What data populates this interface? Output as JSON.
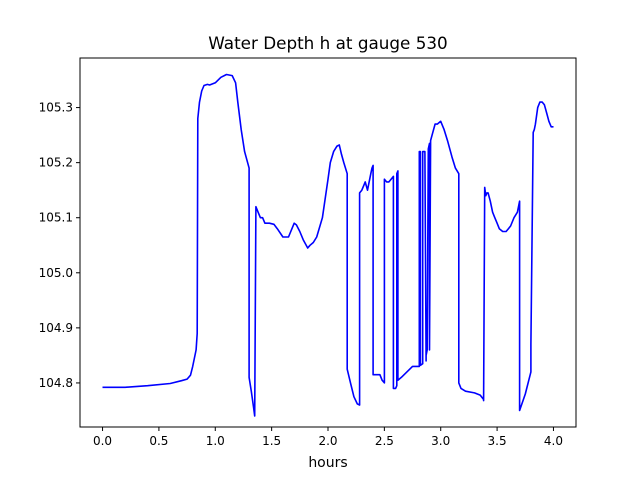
{
  "chart_data": {
    "type": "line",
    "title": "Water Depth h at gauge 530",
    "xlabel": "hours",
    "ylabel": "",
    "xlim": [
      -0.2,
      4.2
    ],
    "ylim": [
      104.72,
      105.39
    ],
    "grid": false,
    "x_ticks": [
      0.0,
      0.5,
      1.0,
      1.5,
      2.0,
      2.5,
      3.0,
      3.5,
      4.0
    ],
    "x_tick_labels": [
      "0.0",
      "0.5",
      "1.0",
      "1.5",
      "2.0",
      "2.5",
      "3.0",
      "3.5",
      "4.0"
    ],
    "y_ticks": [
      104.8,
      104.9,
      105.0,
      105.1,
      105.2,
      105.3
    ],
    "y_tick_labels": [
      "104.8",
      "104.9",
      "105.0",
      "105.1",
      "105.2",
      "105.3"
    ],
    "series": [
      {
        "color": "#0000ff",
        "x": [
          0.0,
          0.2,
          0.4,
          0.6,
          0.7,
          0.75,
          0.78,
          0.8,
          0.83,
          0.84,
          0.845,
          0.86,
          0.88,
          0.9,
          0.93,
          0.95,
          1.0,
          1.05,
          1.1,
          1.15,
          1.18,
          1.2,
          1.23,
          1.26,
          1.3,
          1.3,
          1.32,
          1.34,
          1.35,
          1.36,
          1.38,
          1.4,
          1.42,
          1.44,
          1.46,
          1.48,
          1.52,
          1.55,
          1.6,
          1.65,
          1.7,
          1.72,
          1.75,
          1.78,
          1.82,
          1.84,
          1.87,
          1.9,
          1.95,
          2.0,
          2.02,
          2.05,
          2.08,
          2.1,
          2.12,
          2.14,
          2.17,
          2.17,
          2.2,
          2.23,
          2.26,
          2.28,
          2.28,
          2.3,
          2.32,
          2.33,
          2.35,
          2.38,
          2.39,
          2.4,
          2.4,
          2.44,
          2.46,
          2.48,
          2.5,
          2.5,
          2.52,
          2.54,
          2.56,
          2.58,
          2.58,
          2.6,
          2.61,
          2.61,
          2.62,
          2.62,
          2.65,
          2.7,
          2.75,
          2.8,
          2.81,
          2.81,
          2.82,
          2.82,
          2.84,
          2.84,
          2.86,
          2.87,
          2.87,
          2.88,
          2.89,
          2.9,
          2.9,
          2.91,
          2.93,
          2.95,
          2.97,
          3.0,
          3.03,
          3.06,
          3.1,
          3.13,
          3.16,
          3.16,
          3.18,
          3.22,
          3.3,
          3.35,
          3.38,
          3.38,
          3.39,
          3.4,
          3.41,
          3.42,
          3.44,
          3.46,
          3.48,
          3.5,
          3.52,
          3.55,
          3.58,
          3.6,
          3.62,
          3.65,
          3.68,
          3.7,
          3.7,
          3.75,
          3.8,
          3.8,
          3.82,
          3.83,
          3.84,
          3.86,
          3.88,
          3.9,
          3.92,
          3.94,
          3.96,
          3.98,
          4.0
        ],
        "y": [
          104.792,
          104.792,
          104.795,
          104.799,
          104.804,
          104.807,
          104.814,
          104.83,
          104.86,
          104.89,
          105.28,
          105.31,
          105.33,
          105.34,
          105.342,
          105.341,
          105.345,
          105.355,
          105.36,
          105.358,
          105.345,
          105.31,
          105.26,
          105.22,
          105.19,
          104.81,
          104.785,
          104.755,
          104.74,
          105.12,
          105.11,
          105.1,
          105.1,
          105.09,
          105.09,
          105.09,
          105.088,
          105.08,
          105.065,
          105.065,
          105.09,
          105.087,
          105.075,
          105.06,
          105.045,
          105.05,
          105.055,
          105.065,
          105.1,
          105.17,
          105.2,
          105.22,
          105.23,
          105.232,
          105.215,
          105.2,
          105.18,
          104.825,
          104.8,
          104.775,
          104.762,
          104.76,
          105.145,
          105.15,
          105.16,
          105.165,
          105.15,
          105.18,
          105.19,
          105.195,
          104.815,
          104.815,
          104.815,
          104.805,
          104.8,
          105.17,
          105.165,
          105.165,
          105.17,
          105.175,
          104.79,
          104.79,
          104.795,
          105.18,
          105.185,
          104.805,
          104.81,
          104.82,
          104.83,
          104.83,
          104.83,
          105.22,
          105.22,
          104.832,
          104.835,
          105.22,
          105.22,
          104.84,
          104.85,
          104.86,
          105.225,
          105.235,
          104.86,
          105.24,
          105.255,
          105.27,
          105.27,
          105.275,
          105.26,
          105.24,
          105.21,
          105.19,
          105.18,
          104.8,
          104.79,
          104.785,
          104.782,
          104.778,
          104.77,
          104.768,
          105.155,
          105.14,
          105.145,
          105.145,
          105.13,
          105.11,
          105.1,
          105.09,
          105.08,
          105.075,
          105.075,
          105.08,
          105.085,
          105.1,
          105.11,
          105.13,
          104.75,
          104.78,
          104.82,
          104.87,
          105.255,
          105.26,
          105.27,
          105.3,
          105.31,
          105.31,
          105.305,
          105.29,
          105.275,
          105.265,
          105.265
        ]
      }
    ]
  }
}
